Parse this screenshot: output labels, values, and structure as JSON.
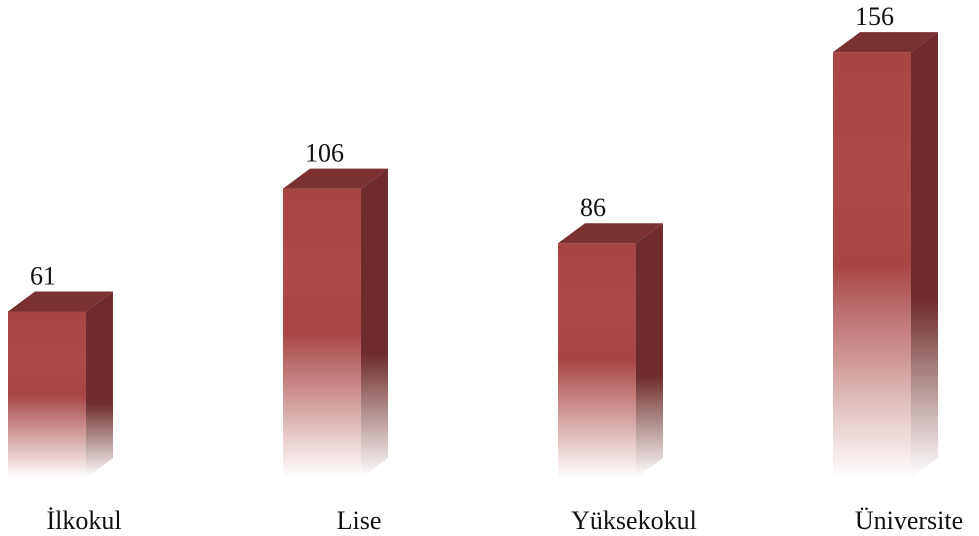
{
  "chart_data": {
    "type": "bar3d",
    "categories": [
      "İlkokul",
      "Lise",
      "Yüksekokul",
      "Üniversite"
    ],
    "values": [
      61,
      106,
      86,
      156
    ],
    "color": "#a84644"
  }
}
